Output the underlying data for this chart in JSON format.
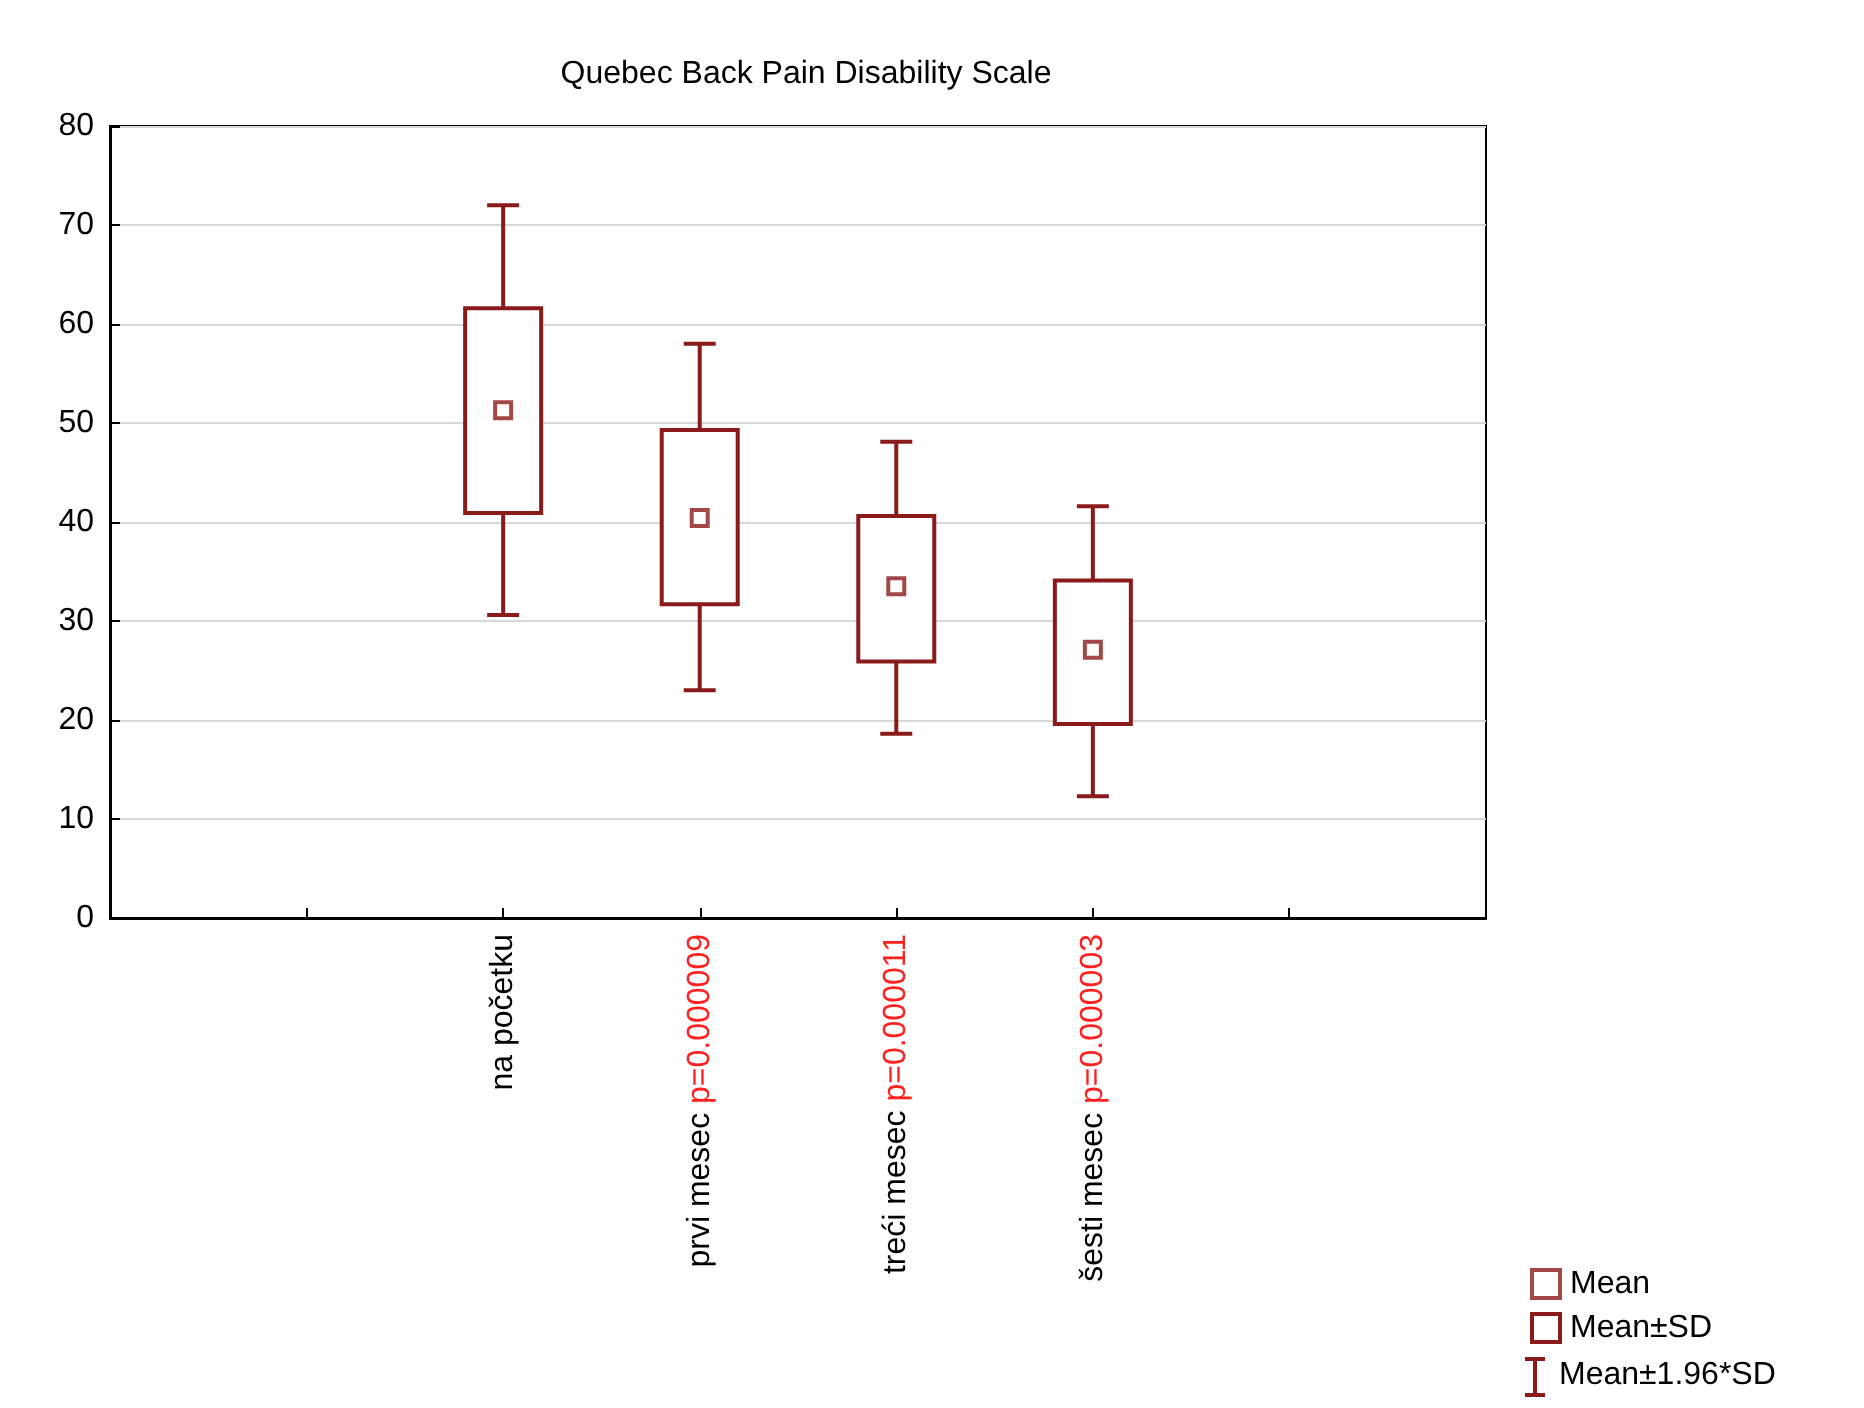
{
  "chart_data": {
    "type": "box",
    "title": "Quebec Back Pain Disability Scale",
    "categories": [
      null,
      "na početku",
      "prvi mesec",
      "treći mesec",
      "šesti mesec",
      null
    ],
    "series": [
      {
        "name": "Mean",
        "type": "scatter",
        "marker": "square",
        "color": "#8b1a1a",
        "values": [
          null,
          51.3,
          40.4,
          33.5,
          27.1,
          null
        ],
        "errors": [
          null,
          [
            30.6,
            72
          ],
          [
            23.0,
            58
          ],
          [
            18.6,
            48.1
          ],
          [
            12.3,
            41.6
          ],
          null
        ]
      },
      {
        "name": "Mean±SD",
        "type": "bar",
        "color": "#8b1a1a",
        "base": [
          null,
          40.9,
          31.7,
          25.9,
          19.6,
          null
        ],
        "values": [
          null,
          20.7,
          17.6,
          14.7,
          14.5,
          null
        ]
      }
    ],
    "ylim": [
      0,
      80
    ],
    "yticks": [
      0,
      10,
      20,
      30,
      40,
      50,
      60,
      70,
      80
    ],
    "grid": "y",
    "legend": "bottom right",
    "annotations": [
      {
        "text": "p=0.000009",
        "x": "prvi mesec"
      },
      {
        "text": "p=0.000011",
        "x": "treći mesec"
      },
      {
        "text": "p=0.000003",
        "x": "šesti mesec"
      },
      "Mean±1.96*SD"
    ]
  }
}
